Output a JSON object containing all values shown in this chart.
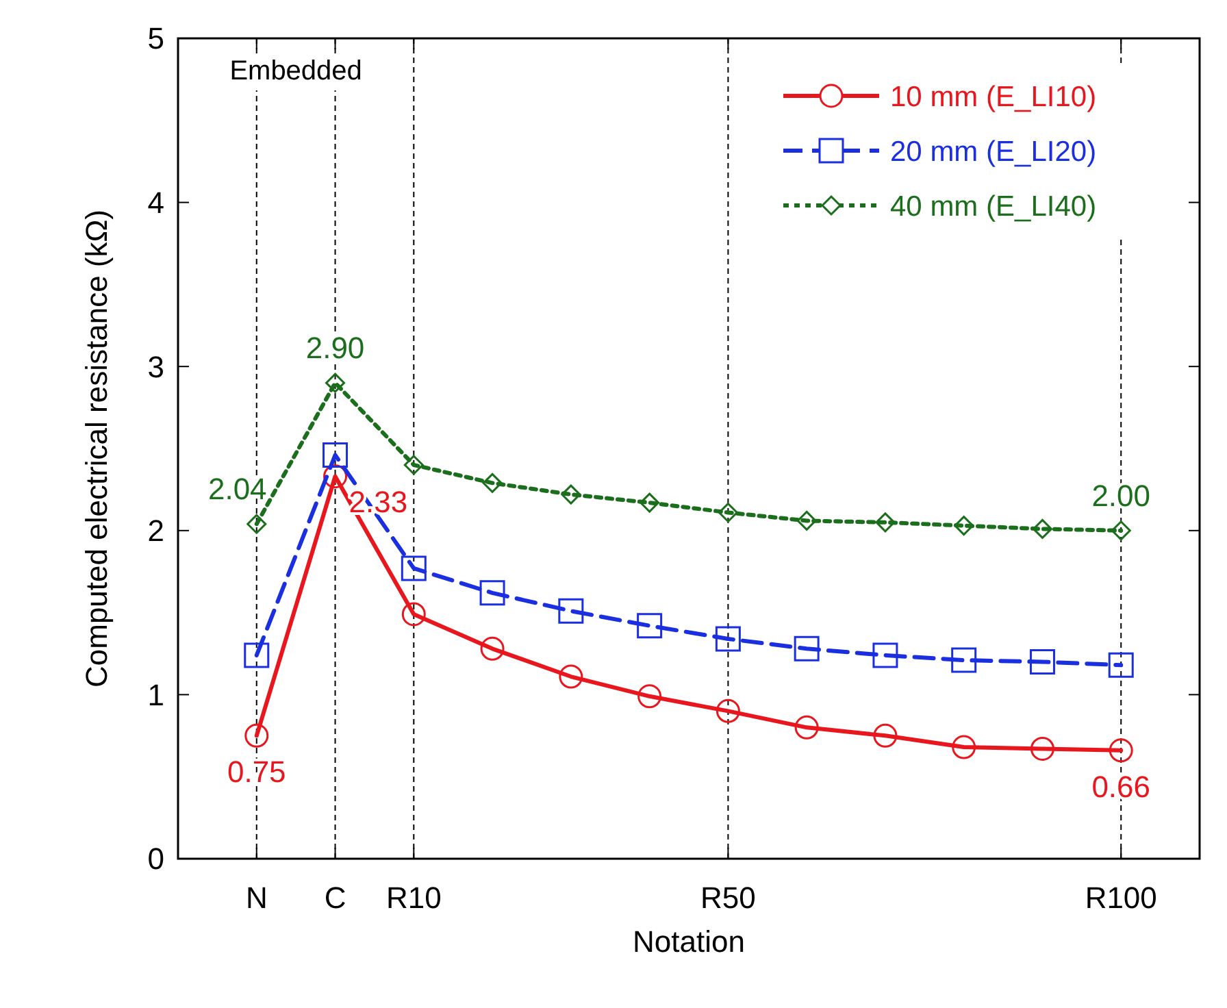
{
  "chart_data": {
    "type": "line",
    "xlabel": "Notation",
    "ylabel": "Computed electrical resistance (kΩ)",
    "categories": [
      "N",
      "C",
      "R10",
      null,
      null,
      null,
      "R50",
      null,
      null,
      null,
      null,
      "R100"
    ],
    "ylim": [
      0,
      5
    ],
    "yticks": [
      0,
      1,
      2,
      3,
      4,
      5
    ],
    "grid": "x",
    "legend": "top right",
    "annotations": [
      "Embedded"
    ],
    "series": [
      {
        "name": "10 mm (E_LI10)",
        "color": "#e8171e",
        "marker": "circle",
        "line_style": "solid",
        "values": [
          0.75,
          2.33,
          1.49,
          1.28,
          1.11,
          0.99,
          0.9,
          0.8,
          0.75,
          0.68,
          0.67,
          0.66
        ],
        "value_labels": [
          "0.75",
          "2.33",
          null,
          null,
          null,
          null,
          null,
          null,
          null,
          null,
          null,
          "0.66"
        ]
      },
      {
        "name": "20 mm (E_LI20)",
        "color": "#1a2fe0",
        "marker": "square",
        "line_style": "dashed",
        "values": [
          1.24,
          2.46,
          1.77,
          1.62,
          1.51,
          1.42,
          1.34,
          1.28,
          1.24,
          1.21,
          1.2,
          1.18
        ]
      },
      {
        "name": "40 mm (E_LI40)",
        "color": "#1b6e1b",
        "marker": "diamond",
        "line_style": "dotted",
        "values": [
          2.04,
          2.9,
          2.4,
          2.29,
          2.22,
          2.17,
          2.11,
          2.06,
          2.05,
          2.03,
          2.01,
          2.0
        ],
        "value_labels": [
          "2.04",
          "2.90",
          null,
          null,
          null,
          null,
          null,
          null,
          null,
          null,
          null,
          "2.00"
        ]
      }
    ]
  }
}
